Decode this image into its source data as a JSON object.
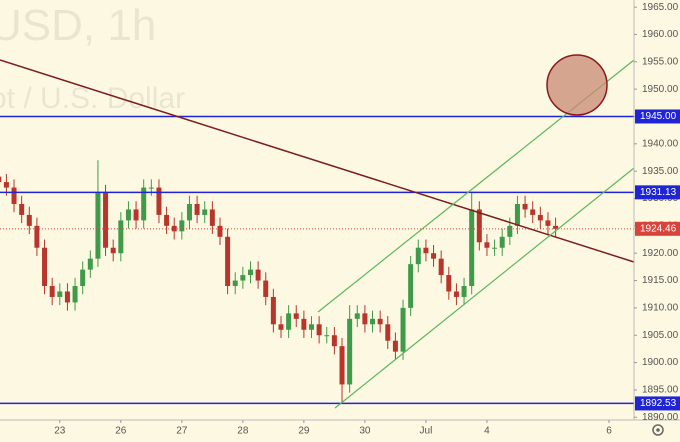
{
  "chart_data": {
    "type": "candlestick",
    "watermark": "USD, 1h",
    "watermark_subtitle": "ot / U.S. Dollar",
    "up_color": "#3f9b4a",
    "down_color": "#b8352c",
    "xlim": [
      -0.98,
      9.41
    ],
    "xticks": [
      {
        "value": 0,
        "label": "23"
      },
      {
        "value": 1,
        "label": "26"
      },
      {
        "value": 2,
        "label": "27"
      },
      {
        "value": 3,
        "label": "28"
      },
      {
        "value": 4,
        "label": "29"
      },
      {
        "value": 5,
        "label": "30"
      },
      {
        "value": 6,
        "label": "Jul"
      },
      {
        "value": 7,
        "label": "4"
      },
      {
        "value": 9,
        "label": "6"
      }
    ],
    "ylim": [
      1889.5,
      1966.3
    ],
    "yticks": [
      {
        "value": 1965,
        "label": "1965.00"
      },
      {
        "value": 1960,
        "label": "1960.00"
      },
      {
        "value": 1955,
        "label": "1955.00"
      },
      {
        "value": 1950,
        "label": "1950.00"
      },
      {
        "value": 1945,
        "label": "1945.00"
      },
      {
        "value": 1940,
        "label": "1940.00"
      },
      {
        "value": 1935,
        "label": "1935.00"
      },
      {
        "value": 1930,
        "label": "1930.00"
      },
      {
        "value": 1925,
        "label": "1925.00"
      },
      {
        "value": 1920,
        "label": "1920.00"
      },
      {
        "value": 1915,
        "label": "1915.00"
      },
      {
        "value": 1910,
        "label": "1910.00"
      },
      {
        "value": 1905,
        "label": "1905.00"
      },
      {
        "value": 1900,
        "label": "1900.00"
      },
      {
        "value": 1895,
        "label": "1895.00"
      },
      {
        "value": 1890,
        "label": "1890.00"
      }
    ],
    "levels": [
      {
        "value": 1945,
        "label": "1945.00",
        "color": "#1f25d6"
      },
      {
        "value": 1931.13,
        "label": "1931.13",
        "color": "#1f25d6"
      },
      {
        "value": 1892.53,
        "label": "1892.53",
        "color": "#1f25d6"
      }
    ],
    "last_price": {
      "value": 1924.46,
      "label": "1924.46",
      "color": "#d9433b"
    },
    "x": [
      -1,
      -0.875,
      -0.75,
      -0.625,
      -0.5,
      -0.375,
      -0.25,
      -0.125,
      0,
      0.125,
      0.25,
      0.375,
      0.5,
      0.625,
      0.75,
      0.875,
      1,
      1.125,
      1.25,
      1.375,
      1.5,
      1.625,
      1.75,
      1.875,
      2,
      2.125,
      2.25,
      2.375,
      2.5,
      2.625,
      2.75,
      2.875,
      3,
      3.125,
      3.25,
      3.375,
      3.5,
      3.625,
      3.75,
      3.875,
      4,
      4.125,
      4.25,
      4.375,
      4.5,
      4.625,
      4.75,
      4.875,
      5,
      5.125,
      5.25,
      5.375,
      5.5,
      5.625,
      5.75,
      5.875,
      6,
      6.125,
      6.25,
      6.375,
      6.5,
      6.625,
      6.75,
      6.875,
      7,
      7.125,
      7.25,
      7.375,
      7.5,
      7.625,
      7.75,
      7.875,
      8,
      8.125
    ],
    "open": [
      1934,
      1933,
      1932,
      1929,
      1927,
      1925,
      1921,
      1914,
      1912,
      1913,
      1911,
      1914,
      1917,
      1919,
      1931,
      1921,
      1920,
      1926,
      1928,
      1926,
      1932,
      1932,
      1927,
      1925,
      1924,
      1926,
      1929,
      1927,
      1928,
      1925,
      1923,
      1914,
      1915,
      1916,
      1917,
      1915,
      1912,
      1907,
      1906,
      1909,
      1908,
      1906,
      1907,
      1905,
      1905,
      1903,
      1896,
      1908,
      1909,
      1907,
      1908,
      1907,
      1904,
      1902,
      1910,
      1918,
      1921,
      1920,
      1919,
      1916,
      1913,
      1912,
      1914,
      1928,
      1922,
      1921,
      1921,
      1923,
      1925,
      1929,
      1928,
      1927,
      1926,
      1925
    ],
    "high": [
      1935.5,
      1934.5,
      1933.5,
      1930.5,
      1928.5,
      1926.5,
      1922.5,
      1915.5,
      1914.5,
      1914.5,
      1915.5,
      1918.5,
      1920.5,
      1937,
      1932.5,
      1922.5,
      1927.5,
      1929.5,
      1929.5,
      1933.5,
      1933.5,
      1933.5,
      1928.5,
      1926.5,
      1927.5,
      1930.5,
      1930.5,
      1929.5,
      1929.5,
      1926.5,
      1924.5,
      1916.5,
      1917.5,
      1918.5,
      1918.5,
      1916.5,
      1913.5,
      1908.5,
      1910.5,
      1910.5,
      1909.5,
      1908.5,
      1908.5,
      1906.5,
      1906.5,
      1904.5,
      1910.5,
      1910.5,
      1910.5,
      1909.5,
      1909.5,
      1908.5,
      1905.5,
      1911.5,
      1919.5,
      1922.5,
      1922.5,
      1921.5,
      1920.5,
      1917.5,
      1914.5,
      1915.5,
      1931,
      1929.5,
      1923.5,
      1922.5,
      1924.5,
      1926.5,
      1930.5,
      1930.5,
      1929.5,
      1928.5,
      1927.5,
      1926.5
    ],
    "low": [
      1931.5,
      1930.5,
      1927.5,
      1925.5,
      1923.5,
      1919.5,
      1912.5,
      1910.5,
      1910.5,
      1909.5,
      1909.5,
      1912.5,
      1915.5,
      1917.5,
      1919.5,
      1918.5,
      1918.5,
      1924.5,
      1924.5,
      1924.5,
      1930.5,
      1925.5,
      1923.5,
      1922.5,
      1922.5,
      1924.5,
      1925.5,
      1925.5,
      1923.5,
      1921.5,
      1912.5,
      1912.5,
      1913.5,
      1914.5,
      1913.5,
      1910.5,
      1905.5,
      1904.5,
      1904.5,
      1906.5,
      1904.5,
      1904.5,
      1903.5,
      1903.5,
      1901.5,
      1892.5,
      1894.5,
      1906.5,
      1905.5,
      1905.5,
      1905.5,
      1902.5,
      1900.5,
      1900.5,
      1908.5,
      1916.5,
      1918.5,
      1917.5,
      1914.5,
      1911.5,
      1910.5,
      1910.5,
      1912.5,
      1920.5,
      1919.5,
      1919.5,
      1919.5,
      1921.5,
      1923.5,
      1926.5,
      1925.5,
      1924.5,
      1923.5,
      1923
    ],
    "close": [
      1933,
      1932,
      1929,
      1927,
      1925,
      1921,
      1914,
      1912,
      1913,
      1911,
      1914,
      1917,
      1919,
      1931,
      1921,
      1920,
      1926,
      1928,
      1926,
      1932,
      1932,
      1927,
      1925,
      1924,
      1926,
      1929,
      1927,
      1928,
      1925,
      1923,
      1914,
      1915,
      1916,
      1917,
      1915,
      1912,
      1907,
      1906,
      1909,
      1908,
      1906,
      1907,
      1905,
      1905,
      1903,
      1896,
      1908,
      1909,
      1907,
      1908,
      1907,
      1904,
      1902,
      1910,
      1918,
      1921,
      1920,
      1919,
      1916,
      1913,
      1912,
      1914,
      1928,
      1922,
      1921,
      1921,
      1923,
      1925,
      1929,
      1928,
      1927,
      1926,
      1925,
      1924.46
    ]
  }
}
